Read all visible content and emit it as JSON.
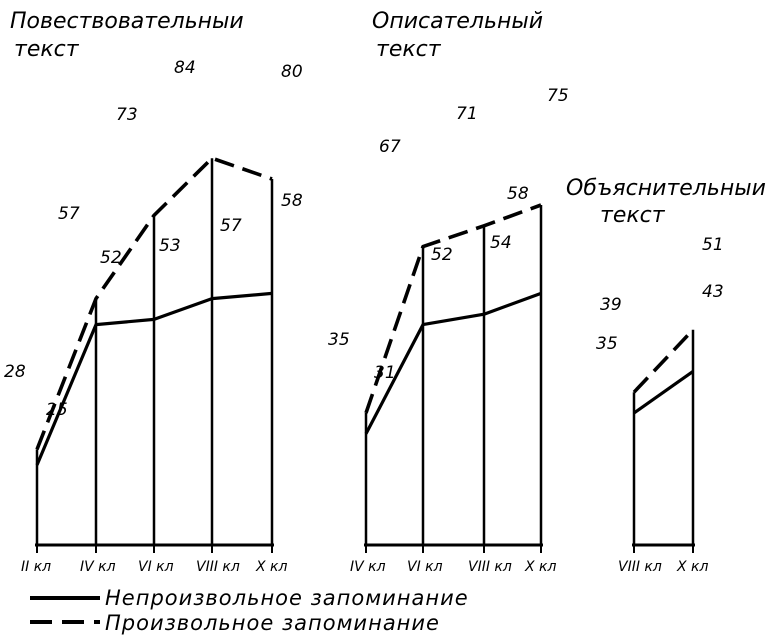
{
  "legend": {
    "solid_label": "Непроизвольное запоминание",
    "dashed_label": "Произвольное запоминание"
  },
  "chart_data": [
    {
      "type": "line",
      "title": "Повествовательныи текст",
      "title_lines": [
        "Повествовательныи",
        "текст"
      ],
      "categories": [
        "II кл",
        "IV кл",
        "VI кл",
        "VIII кл",
        "X кл"
      ],
      "series": [
        {
          "style": "solid",
          "values": [
            25,
            52,
            53,
            57,
            58
          ]
        },
        {
          "style": "dashed",
          "values": [
            28,
            57,
            73,
            84,
            80
          ]
        }
      ]
    },
    {
      "type": "line",
      "title": "Описательный текст",
      "title_lines": [
        "Описательный",
        "текст"
      ],
      "categories": [
        "IV кл",
        "VI кл",
        "VIII кл",
        "X кл"
      ],
      "series": [
        {
          "style": "solid",
          "values": [
            31,
            52,
            54,
            58
          ]
        },
        {
          "style": "dashed",
          "values": [
            35,
            67,
            71,
            75
          ]
        }
      ]
    },
    {
      "type": "line",
      "title": "Объяснительныи текст",
      "title_lines": [
        "Объяснительныи",
        "текст"
      ],
      "categories": [
        "VIII кл",
        "X кл"
      ],
      "series": [
        {
          "style": "solid",
          "values": [
            35,
            43
          ]
        },
        {
          "style": "dashed",
          "values": [
            39,
            51
          ]
        }
      ]
    }
  ]
}
